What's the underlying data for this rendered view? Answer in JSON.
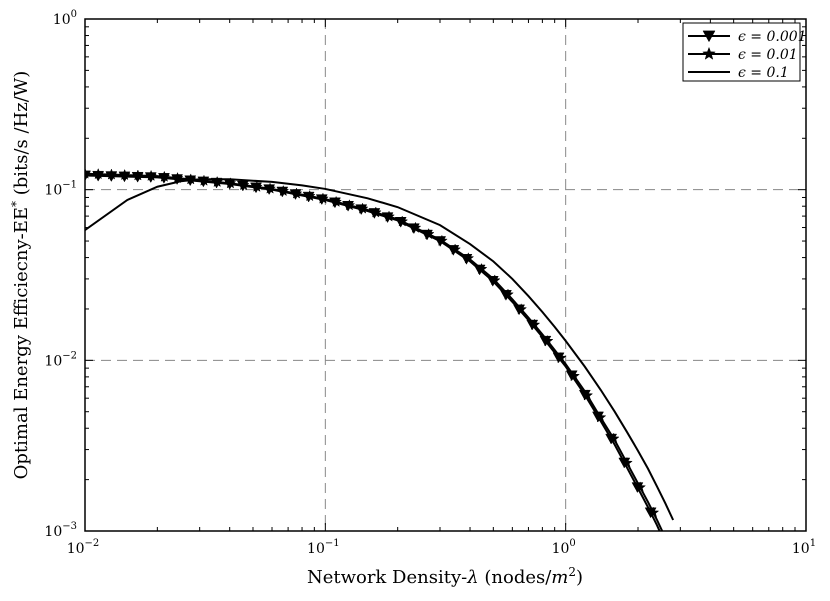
{
  "chart_data": {
    "type": "line",
    "title": "",
    "xlabel": "Network Density-λ (nodes/m²)",
    "xlabel_parts": {
      "main": "Network Density-",
      "lambda": "λ",
      "paren_open": " (nodes/",
      "unit": "m",
      "unit_sup": "2",
      "paren_close": ")"
    },
    "ylabel": "Optimal Energy Efficiecny-EE* (bits/s /Hz/W)",
    "ylabel_parts": {
      "main": "Optimal Energy Efficiecny-EE",
      "sup": "*",
      "rest": " (bits/s /Hz/W)"
    },
    "x_scale": "log",
    "y_scale": "log",
    "xlim": [
      0.01,
      10
    ],
    "ylim": [
      0.001,
      1
    ],
    "x_ticks": [
      {
        "value": 0.01,
        "base": "10",
        "exp": "−2"
      },
      {
        "value": 0.1,
        "base": "10",
        "exp": "−1"
      },
      {
        "value": 1,
        "base": "10",
        "exp": "0"
      },
      {
        "value": 10,
        "base": "10",
        "exp": "1"
      }
    ],
    "y_ticks": [
      {
        "value": 0.001,
        "base": "10",
        "exp": "−3"
      },
      {
        "value": 0.01,
        "base": "10",
        "exp": "−2"
      },
      {
        "value": 0.1,
        "base": "10",
        "exp": "−1"
      },
      {
        "value": 1,
        "base": "10",
        "exp": "0"
      }
    ],
    "grid": true,
    "legend_position": "top-right",
    "series": [
      {
        "name": "ϵ = 0.001",
        "marker": "triangle-down",
        "x": [
          0.01,
          0.02,
          0.04,
          0.06,
          0.1,
          0.15,
          0.2,
          0.3,
          0.4,
          0.5,
          0.6,
          0.7,
          0.8,
          0.9,
          1.0,
          1.2,
          1.4,
          1.6,
          1.8,
          2.0,
          2.2,
          2.4,
          2.56
        ],
        "y": [
          0.121,
          0.118,
          0.108,
          0.1,
          0.087,
          0.075,
          0.066,
          0.05,
          0.038,
          0.029,
          0.022,
          0.0172,
          0.0137,
          0.0111,
          0.0092,
          0.0063,
          0.0044,
          0.0032,
          0.00235,
          0.00178,
          0.00138,
          0.00108,
          0.00088
        ]
      },
      {
        "name": "ϵ = 0.01",
        "marker": "star",
        "x": [
          0.01,
          0.02,
          0.04,
          0.06,
          0.1,
          0.15,
          0.2,
          0.3,
          0.4,
          0.5,
          0.6,
          0.7,
          0.8,
          0.9,
          1.0,
          1.2,
          1.4,
          1.6,
          1.8,
          2.0,
          2.2,
          2.4,
          2.63
        ],
        "y": [
          0.124,
          0.12,
          0.109,
          0.101,
          0.088,
          0.076,
          0.067,
          0.051,
          0.039,
          0.03,
          0.0228,
          0.0178,
          0.0142,
          0.0115,
          0.0095,
          0.0066,
          0.0046,
          0.0034,
          0.0025,
          0.0019,
          0.00148,
          0.00116,
          0.00088
        ]
      },
      {
        "name": "ϵ = 0.1",
        "marker": "none",
        "x": [
          0.01,
          0.015,
          0.02,
          0.025,
          0.03,
          0.04,
          0.06,
          0.08,
          0.1,
          0.15,
          0.2,
          0.3,
          0.4,
          0.5,
          0.6,
          0.7,
          0.8,
          0.9,
          1.0,
          1.2,
          1.4,
          1.6,
          1.8,
          2.0,
          2.2,
          2.4,
          2.6,
          2.8
        ],
        "y": [
          0.058,
          0.087,
          0.104,
          0.112,
          0.115,
          0.115,
          0.111,
          0.106,
          0.101,
          0.089,
          0.079,
          0.062,
          0.048,
          0.038,
          0.03,
          0.0238,
          0.0192,
          0.0157,
          0.013,
          0.0092,
          0.0067,
          0.005,
          0.0038,
          0.00295,
          0.00232,
          0.00182,
          0.00145,
          0.00116
        ]
      }
    ]
  }
}
